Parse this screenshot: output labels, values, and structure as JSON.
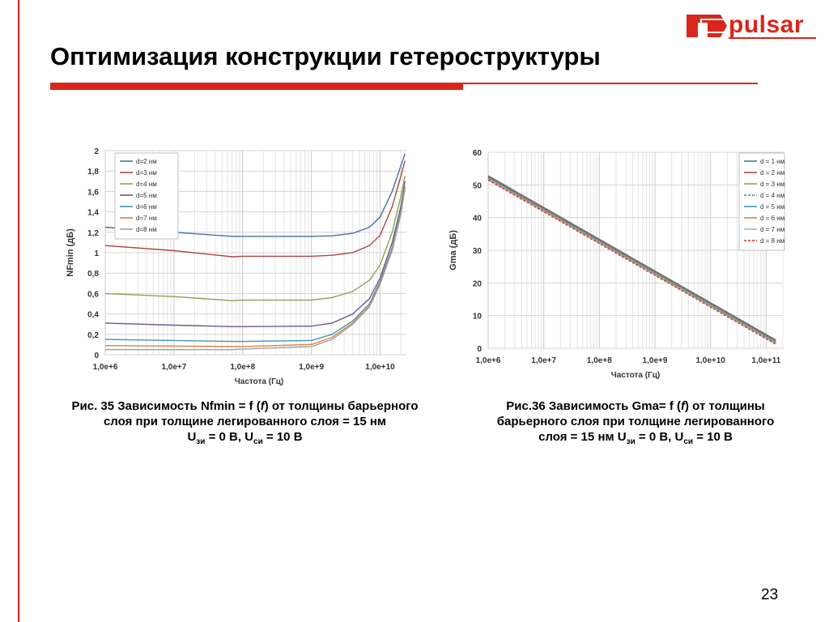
{
  "slide": {
    "title": "Оптимизация конструкции гетероструктуры",
    "logo_text": "pulsar",
    "page_number": "23",
    "accent_color": "#d9261c"
  },
  "captions": {
    "left": {
      "line1": "Рис. 35 Зависимость Nfmin = f (",
      "line1_italic": "f",
      "line1_end": ") от толщины барьерного",
      "line2": "слоя при толщине легированного слоя = 15 нм",
      "u1": "U",
      "u1_sub": "зи",
      "u1_val": " = 0 В, U",
      "u2_sub": "си",
      "u2_val": " = 10 В"
    },
    "right": {
      "line1": "Рис.36 Зависимость Gma= f (",
      "line1_italic": "f",
      "line1_end": ") от толщины",
      "line2": "барьерного слоя при толщине легированного",
      "line3a": "слоя = 15 нм U",
      "u1_sub": "зи",
      "u1_val": " = 0 В, U",
      "u2_sub": "си",
      "u2_val": " = 10 В"
    }
  },
  "chart_data": [
    {
      "type": "line",
      "xlabel": "Частота (Гц)",
      "ylabel": "NFmin (дБ)",
      "x_scale": "log",
      "xlim": [
        1000000,
        30000000000
      ],
      "ylim": [
        0,
        2
      ],
      "x_ticks": [
        1000000,
        10000000,
        100000000,
        1000000000,
        10000000000
      ],
      "x_tick_labels": [
        "1,0e+6",
        "1,0e+7",
        "1,0e+8",
        "1,0e+9",
        "1,0e+10"
      ],
      "y_ticks": [
        0,
        0.2,
        0.4,
        0.6,
        0.8,
        1,
        1.2,
        1.4,
        1.6,
        1.8,
        2
      ],
      "y_tick_labels": [
        "0",
        "0,2",
        "0,4",
        "0,6",
        "0,8",
        "1",
        "1,2",
        "1,4",
        "1,6",
        "1,8",
        "2"
      ],
      "grid": true,
      "legend_position": "top-left",
      "series": [
        {
          "name": "d=2 нм",
          "color": "#4572a7",
          "dash": "",
          "x": [
            1000000,
            10000000,
            70000000,
            100000000,
            1000000000,
            2000000000,
            4000000000,
            7000000000,
            10000000000,
            15000000000,
            20000000000,
            23000000000
          ],
          "y": [
            1.25,
            1.2,
            1.16,
            1.16,
            1.16,
            1.165,
            1.19,
            1.25,
            1.35,
            1.6,
            1.85,
            1.97
          ]
        },
        {
          "name": "d=3 нм",
          "color": "#aa4643",
          "dash": "",
          "x": [
            1000000,
            10000000,
            70000000,
            100000000,
            1000000000,
            2000000000,
            4000000000,
            7000000000,
            10000000000,
            15000000000,
            20000000000,
            23000000000
          ],
          "y": [
            1.07,
            1.02,
            0.96,
            0.965,
            0.965,
            0.975,
            1.0,
            1.07,
            1.17,
            1.45,
            1.75,
            1.9
          ]
        },
        {
          "name": "d=4 нм",
          "color": "#89a54e",
          "dash": "",
          "x": [
            1000000,
            10000000,
            70000000,
            100000000,
            1000000000,
            2000000000,
            4000000000,
            7000000000,
            10000000000,
            15000000000,
            20000000000,
            23000000000
          ],
          "y": [
            0.6,
            0.57,
            0.53,
            0.535,
            0.535,
            0.56,
            0.62,
            0.73,
            0.88,
            1.2,
            1.55,
            1.75
          ]
        },
        {
          "name": "d=5 нм",
          "color": "#71588f",
          "dash": "",
          "x": [
            1000000,
            10000000,
            70000000,
            100000000,
            1000000000,
            2000000000,
            4000000000,
            7000000000,
            10000000000,
            15000000000,
            20000000000,
            23000000000
          ],
          "y": [
            0.31,
            0.29,
            0.275,
            0.275,
            0.28,
            0.31,
            0.4,
            0.55,
            0.75,
            1.1,
            1.45,
            1.7
          ]
        },
        {
          "name": "d=6 нм",
          "color": "#4198af",
          "dash": "",
          "x": [
            1000000,
            10000000,
            70000000,
            100000000,
            1000000000,
            2000000000,
            4000000000,
            7000000000,
            10000000000,
            15000000000,
            20000000000,
            23000000000
          ],
          "y": [
            0.15,
            0.14,
            0.13,
            0.13,
            0.14,
            0.2,
            0.33,
            0.5,
            0.72,
            1.05,
            1.4,
            1.65
          ]
        },
        {
          "name": "d=7 нм",
          "color": "#db843d",
          "dash": "",
          "x": [
            1000000,
            10000000,
            70000000,
            100000000,
            1000000000,
            2000000000,
            4000000000,
            7000000000,
            10000000000,
            15000000000,
            20000000000,
            23000000000
          ],
          "y": [
            0.09,
            0.085,
            0.08,
            0.08,
            0.1,
            0.17,
            0.31,
            0.48,
            0.7,
            1.03,
            1.38,
            1.64
          ]
        },
        {
          "name": "d=8 нм",
          "color": "#a0a0a0",
          "dash": "",
          "x": [
            1000000,
            10000000,
            70000000,
            100000000,
            1000000000,
            2000000000,
            4000000000,
            7000000000,
            10000000000,
            15000000000,
            20000000000,
            23000000000
          ],
          "y": [
            0.05,
            0.05,
            0.05,
            0.055,
            0.08,
            0.15,
            0.3,
            0.47,
            0.69,
            1.02,
            1.37,
            1.63
          ]
        }
      ]
    },
    {
      "type": "line",
      "xlabel": "Частота (Гц)",
      "ylabel": "Gma (дБ)",
      "x_scale": "log",
      "xlim": [
        1000000,
        200000000000
      ],
      "ylim": [
        0,
        60
      ],
      "x_ticks": [
        1000000,
        10000000,
        100000000,
        1000000000,
        10000000000,
        100000000000
      ],
      "x_tick_labels": [
        "1,0e+6",
        "1,0e+7",
        "1,0e+8",
        "1,0e+9",
        "1,0e+10",
        "1,0e+11"
      ],
      "y_ticks": [
        0,
        10,
        20,
        30,
        40,
        50,
        60
      ],
      "y_tick_labels": [
        "0",
        "10",
        "20",
        "30",
        "40",
        "50",
        "60"
      ],
      "grid": true,
      "legend_position": "top-right",
      "series": [
        {
          "name": "d = 1 нм",
          "color": "#4572a7",
          "dash": "",
          "x": [
            1000000,
            150000000000
          ],
          "y": [
            52.8,
            2.5
          ]
        },
        {
          "name": "d = 2 нм",
          "color": "#aa4643",
          "dash": "",
          "x": [
            1000000,
            150000000000
          ],
          "y": [
            52.6,
            2.3
          ]
        },
        {
          "name": "d = 3 нм",
          "color": "#89a54e",
          "dash": "",
          "x": [
            1000000,
            150000000000
          ],
          "y": [
            52.4,
            2.1
          ]
        },
        {
          "name": "d = 4 нм",
          "color": "#3a9a6a",
          "dash": "3,2",
          "x": [
            1000000,
            150000000000
          ],
          "y": [
            52.3,
            2.0
          ]
        },
        {
          "name": "d = 5 нм",
          "color": "#4198af",
          "dash": "",
          "x": [
            1000000,
            150000000000
          ],
          "y": [
            52.1,
            1.8
          ]
        },
        {
          "name": "d = 6 нм",
          "color": "#db843d",
          "dash": "",
          "x": [
            1000000,
            150000000000
          ],
          "y": [
            51.9,
            1.6
          ]
        },
        {
          "name": "d = 7 нм",
          "color": "#8ebadf",
          "dash": "",
          "x": [
            1000000,
            150000000000
          ],
          "y": [
            51.7,
            1.4
          ]
        },
        {
          "name": "d = 8 нм",
          "color": "#e02020",
          "dash": "3,2",
          "x": [
            1000000,
            150000000000
          ],
          "y": [
            51.5,
            1.2
          ]
        }
      ]
    }
  ]
}
